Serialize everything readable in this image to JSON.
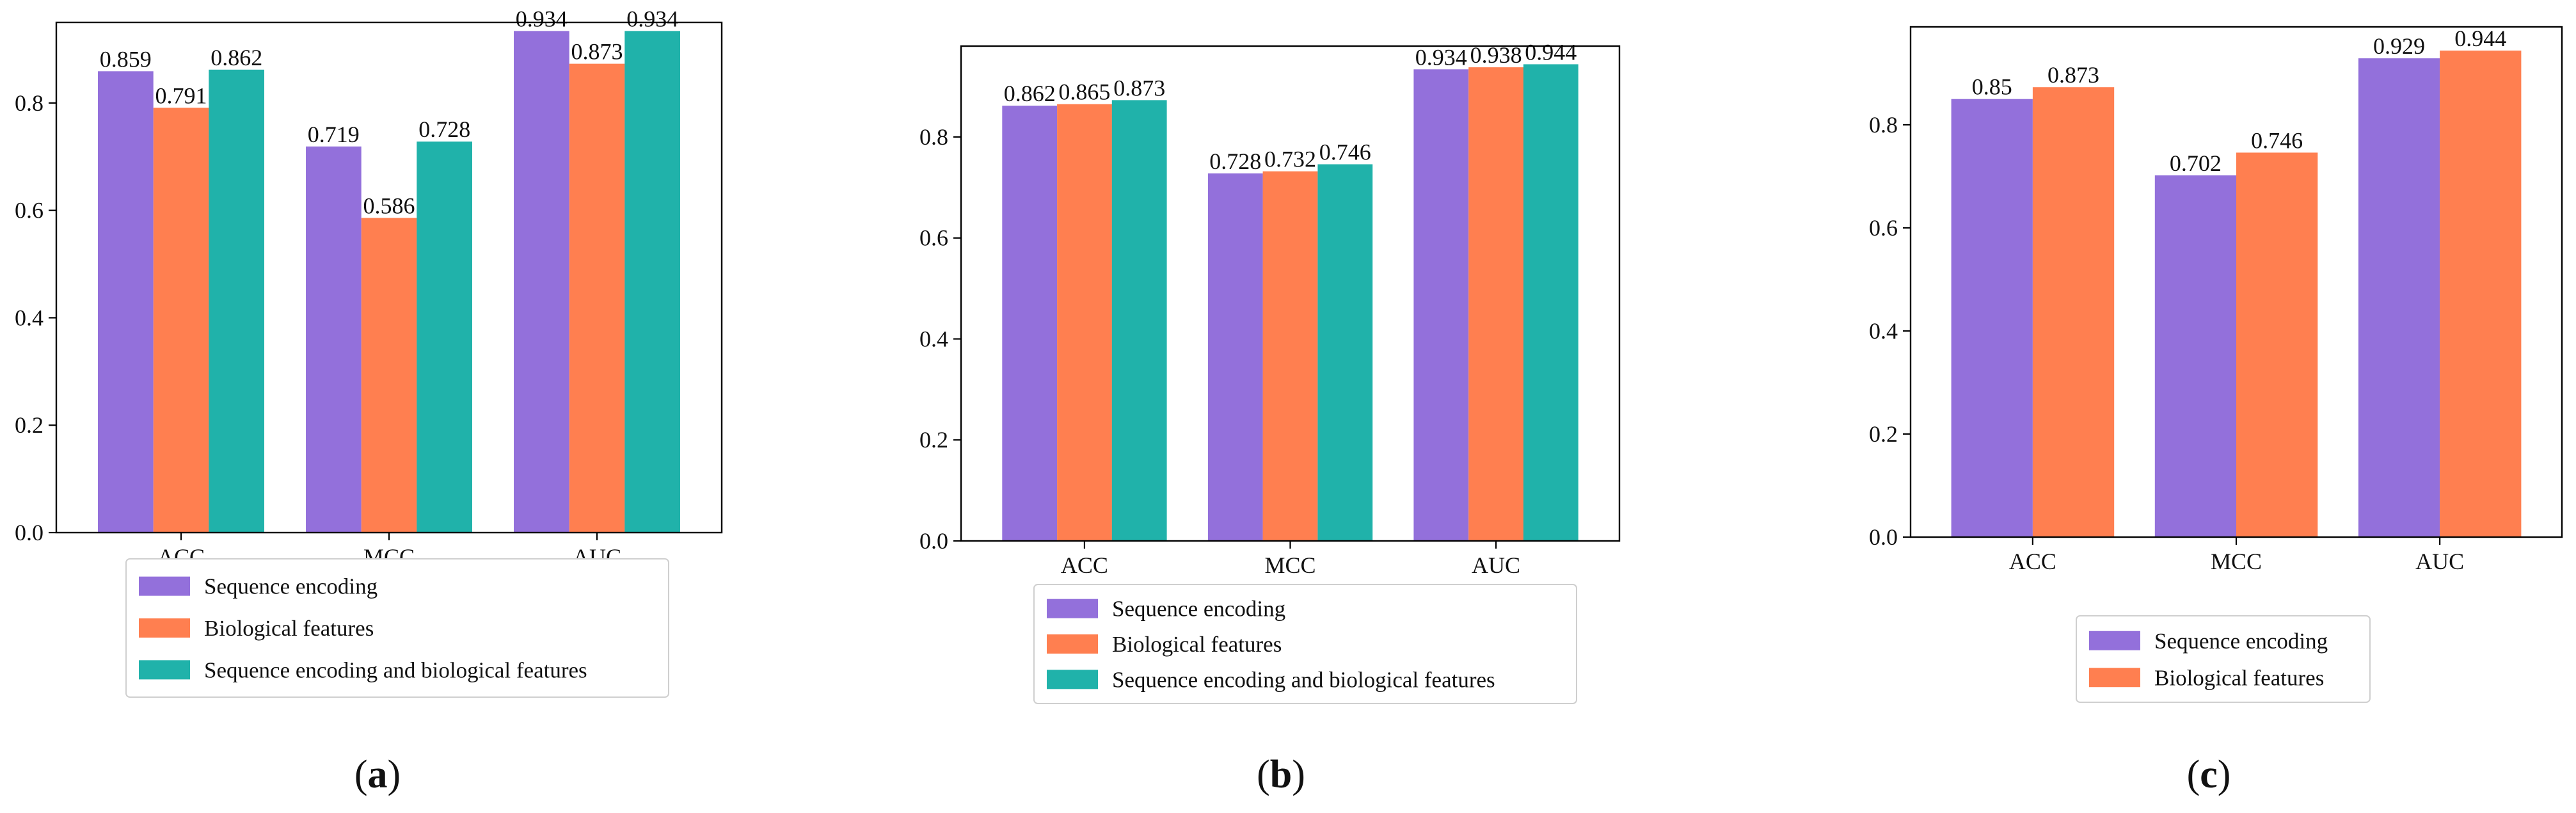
{
  "figure_title": "",
  "colors": {
    "sequence_encoding": "#9370DB",
    "biological_features": "#FF7F50",
    "combined": "#20B2AA",
    "axes": "#000000",
    "text": "#111111"
  },
  "series_names": {
    "sequence_encoding": "Sequence encoding",
    "biological_features": "Biological features",
    "combined": "Sequence encoding and biological features"
  },
  "chart_data": [
    {
      "id": "a",
      "type": "bar",
      "caption_letter": "a",
      "title": "",
      "xlabel": "",
      "ylabel": "",
      "categories": [
        "ACC",
        "MCC",
        "AUC"
      ],
      "ylim": [
        0.0,
        0.95
      ],
      "yticks": [
        0.0,
        0.2,
        0.4,
        0.6,
        0.8
      ],
      "grid": false,
      "legend_position": "below",
      "series": [
        {
          "key": "sequence_encoding",
          "name": "Sequence encoding",
          "color": "#9370DB",
          "values": [
            0.859,
            0.719,
            0.934
          ],
          "labels": [
            "0.859",
            "0.719",
            "0.934"
          ]
        },
        {
          "key": "biological_features",
          "name": "Biological features",
          "color": "#FF7F50",
          "values": [
            0.791,
            0.586,
            0.873
          ],
          "labels": [
            "0.791",
            "0.586",
            "0.873"
          ]
        },
        {
          "key": "combined",
          "name": "Sequence encoding and biological features",
          "color": "#20B2AA",
          "values": [
            0.862,
            0.728,
            0.934
          ],
          "labels": [
            "0.862",
            "0.728",
            "0.934"
          ]
        }
      ]
    },
    {
      "id": "b",
      "type": "bar",
      "caption_letter": "b",
      "title": "",
      "xlabel": "",
      "ylabel": "",
      "categories": [
        "ACC",
        "MCC",
        "AUC"
      ],
      "ylim": [
        0.0,
        0.98
      ],
      "yticks": [
        0.0,
        0.2,
        0.4,
        0.6,
        0.8
      ],
      "grid": false,
      "legend_position": "below",
      "series": [
        {
          "key": "sequence_encoding",
          "name": "Sequence encoding",
          "color": "#9370DB",
          "values": [
            0.862,
            0.728,
            0.934
          ],
          "labels": [
            "0.862",
            "0.728",
            "0.934"
          ]
        },
        {
          "key": "biological_features",
          "name": "Biological features",
          "color": "#FF7F50",
          "values": [
            0.865,
            0.732,
            0.938
          ],
          "labels": [
            "0.865",
            "0.732",
            "0.938"
          ]
        },
        {
          "key": "combined",
          "name": "Sequence encoding and biological features",
          "color": "#20B2AA",
          "values": [
            0.873,
            0.746,
            0.944
          ],
          "labels": [
            "0.873",
            "0.746",
            "0.944"
          ]
        }
      ]
    },
    {
      "id": "c",
      "type": "bar",
      "caption_letter": "c",
      "title": "",
      "xlabel": "",
      "ylabel": "",
      "categories": [
        "ACC",
        "MCC",
        "AUC"
      ],
      "ylim": [
        0.0,
        0.99
      ],
      "yticks": [
        0.0,
        0.2,
        0.4,
        0.6,
        0.8
      ],
      "grid": false,
      "legend_position": "below",
      "series": [
        {
          "key": "sequence_encoding",
          "name": "Sequence encoding",
          "color": "#9370DB",
          "values": [
            0.85,
            0.702,
            0.929
          ],
          "labels": [
            "0.85",
            "0.702",
            "0.929"
          ]
        },
        {
          "key": "biological_features",
          "name": "Biological features",
          "color": "#FF7F50",
          "values": [
            0.873,
            0.746,
            0.944
          ],
          "labels": [
            "0.873",
            "0.746",
            "0.944"
          ]
        }
      ]
    }
  ]
}
